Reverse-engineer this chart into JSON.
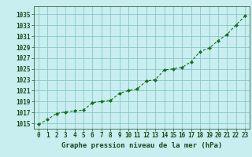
{
  "x": [
    0,
    1,
    2,
    3,
    4,
    5,
    6,
    7,
    8,
    9,
    10,
    11,
    12,
    13,
    14,
    15,
    16,
    17,
    18,
    19,
    20,
    21,
    22,
    23
  ],
  "y": [
    1014.8,
    1015.7,
    1016.8,
    1017.1,
    1017.3,
    1017.4,
    1018.8,
    1019.0,
    1019.2,
    1020.5,
    1021.0,
    1021.3,
    1022.8,
    1023.0,
    1024.8,
    1025.0,
    1025.3,
    1026.3,
    1028.2,
    1028.8,
    1030.2,
    1031.3,
    1033.1,
    1034.7
  ],
  "line_color": "#1a6b1a",
  "marker": "D",
  "marker_size": 2.0,
  "bg_color": "#c8eef0",
  "grid_color": "#7fbfbf",
  "xlabel": "Graphe pression niveau de la mer (hPa)",
  "xlabel_color": "#1a4a1a",
  "xlabel_fontsize": 6.5,
  "tick_color": "#1a4a1a",
  "tick_fontsize": 5.5,
  "ylim": [
    1014.0,
    1036.5
  ],
  "xlim": [
    -0.5,
    23.5
  ],
  "xticks": [
    0,
    1,
    2,
    3,
    4,
    5,
    6,
    7,
    8,
    9,
    10,
    11,
    12,
    13,
    14,
    15,
    16,
    17,
    18,
    19,
    20,
    21,
    22,
    23
  ],
  "yticks": [
    1015,
    1017,
    1019,
    1021,
    1023,
    1025,
    1027,
    1029,
    1031,
    1033,
    1035
  ]
}
